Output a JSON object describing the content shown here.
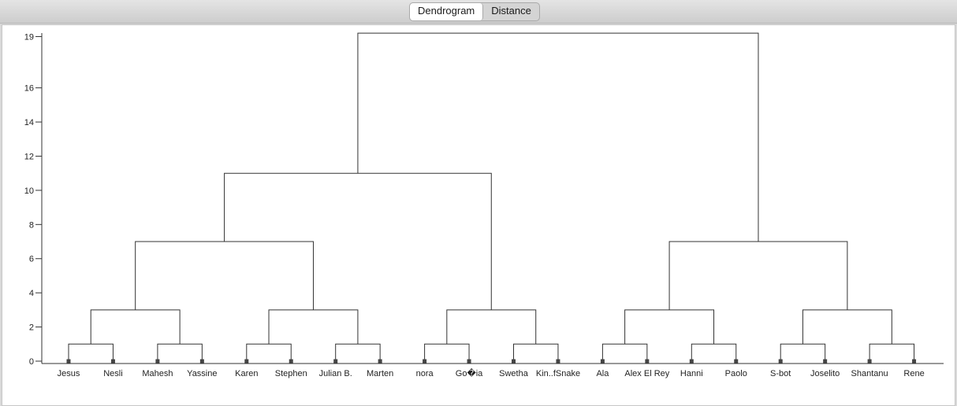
{
  "tabs": [
    {
      "label": "Dendrogram",
      "active": true
    },
    {
      "label": "Distance",
      "active": false
    }
  ],
  "chart_data": {
    "type": "dendrogram",
    "y_ticks": [
      0,
      2,
      4,
      6,
      8,
      10,
      12,
      14,
      16,
      19
    ],
    "ylim": [
      0,
      19.3
    ],
    "leaves": [
      "Jesus",
      "Nesli",
      "Mahesh",
      "Yassine",
      "Karen",
      "Stephen",
      "Julian B.",
      "Marten",
      "nora",
      "Go�ia",
      "Swetha",
      "Kin..fSnake",
      "Ala",
      "Alex El Rey",
      "Hanni",
      "Paolo",
      "S-bot",
      "Joselito",
      "Shantanu",
      "Rene"
    ],
    "merges": [
      {
        "left": "L0",
        "right": "L1",
        "height": 1
      },
      {
        "left": "L2",
        "right": "L3",
        "height": 1
      },
      {
        "left": "L4",
        "right": "L5",
        "height": 1
      },
      {
        "left": "L6",
        "right": "L7",
        "height": 1
      },
      {
        "left": "L8",
        "right": "L9",
        "height": 1
      },
      {
        "left": "L10",
        "right": "L11",
        "height": 1
      },
      {
        "left": "L12",
        "right": "L13",
        "height": 1
      },
      {
        "left": "L14",
        "right": "L15",
        "height": 1
      },
      {
        "left": "L16",
        "right": "L17",
        "height": 1
      },
      {
        "left": "L18",
        "right": "L19",
        "height": 1
      },
      {
        "left": "N0",
        "right": "N1",
        "height": 3
      },
      {
        "left": "N2",
        "right": "N3",
        "height": 3
      },
      {
        "left": "N4",
        "right": "N5",
        "height": 3
      },
      {
        "left": "N6",
        "right": "N7",
        "height": 3
      },
      {
        "left": "N8",
        "right": "N9",
        "height": 3
      },
      {
        "left": "N10",
        "right": "N11",
        "height": 7
      },
      {
        "left": "N13",
        "right": "N14",
        "height": 7
      },
      {
        "left": "N15",
        "right": "N12",
        "height": 11
      },
      {
        "left": "N17",
        "right": "N16",
        "height": 19.2
      }
    ]
  }
}
